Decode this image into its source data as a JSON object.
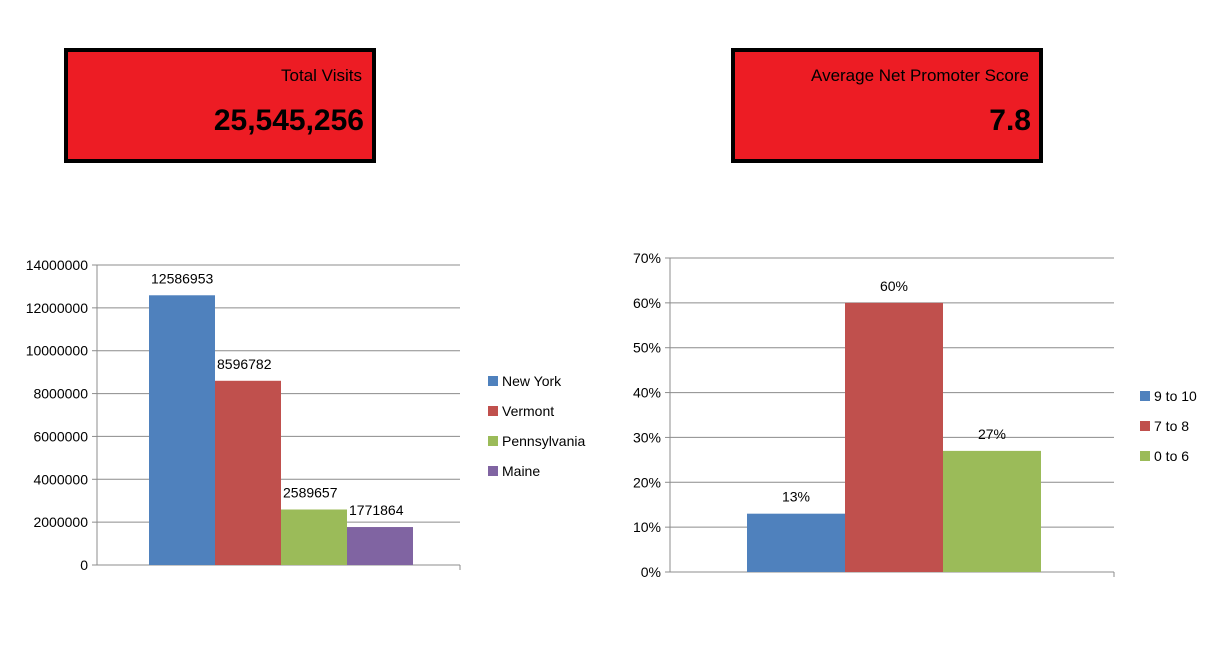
{
  "kpis": {
    "visits": {
      "label": "Total Visits",
      "value": "25,545,256",
      "color": "#ed1c24"
    },
    "nps": {
      "label": "Average Net Promoter Score",
      "value": "7.8",
      "color": "#ed1c24"
    }
  },
  "chart_data": [
    {
      "type": "bar",
      "title": "",
      "xlabel": "",
      "ylabel": "",
      "ylim": [
        0,
        14000000
      ],
      "yticks": [
        "0",
        "2000000",
        "4000000",
        "6000000",
        "8000000",
        "10000000",
        "12000000",
        "14000000"
      ],
      "grid": true,
      "legend": "right",
      "series": [
        {
          "name": "New York",
          "value": 12586953,
          "label": "12586953",
          "color": "#4f81bd"
        },
        {
          "name": "Vermont",
          "value": 8596782,
          "label": "8596782",
          "color": "#c0504d"
        },
        {
          "name": "Pennsylvania",
          "value": 2589657,
          "label": "2589657",
          "color": "#9bbb59"
        },
        {
          "name": "Maine",
          "value": 1771864,
          "label": "1771864",
          "color": "#8064a2"
        }
      ]
    },
    {
      "type": "bar",
      "title": "",
      "xlabel": "",
      "ylabel": "",
      "ylim": [
        0,
        0.7
      ],
      "yticks": [
        "0%",
        "10%",
        "20%",
        "30%",
        "40%",
        "50%",
        "60%",
        "70%"
      ],
      "grid": true,
      "legend": "right",
      "series": [
        {
          "name": "9 to 10",
          "value": 0.13,
          "label": "13%",
          "color": "#4f81bd"
        },
        {
          "name": "7 to 8",
          "value": 0.6,
          "label": "60%",
          "color": "#c0504d"
        },
        {
          "name": "0 to 6",
          "value": 0.27,
          "label": "27%",
          "color": "#9bbb59"
        }
      ]
    }
  ]
}
